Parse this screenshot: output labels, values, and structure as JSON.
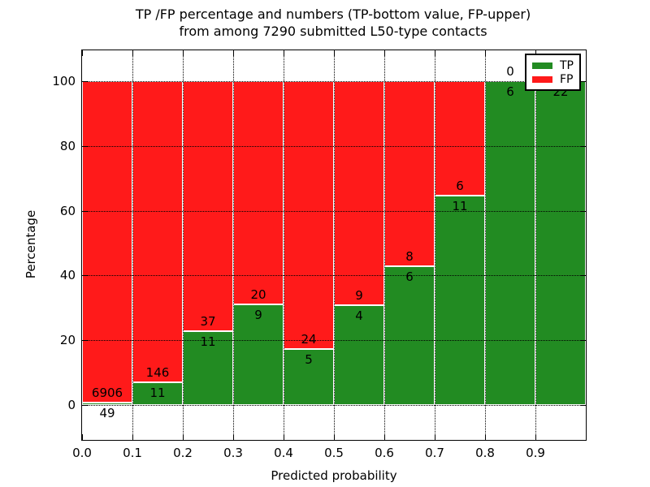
{
  "title": {
    "line1": "TP /FP percentage and numbers (TP-bottom value, FP-upper)",
    "line2": "from among 7290 submitted L50-type contacts"
  },
  "colors": {
    "tp": "#228b22",
    "fp": "#ff1a1a",
    "frame": "#000000",
    "background": "#ffffff"
  },
  "chart_data": {
    "type": "bar",
    "stacked": true,
    "normalized_to_percent": true,
    "title": "TP /FP percentage and numbers (TP-bottom value, FP-upper) from among 7290 submitted L50-type contacts",
    "xlabel": "Predicted probability",
    "ylabel": "Percentage",
    "x_tick_labels": [
      "0.0",
      "0.1",
      "0.2",
      "0.3",
      "0.4",
      "0.5",
      "0.6",
      "0.7",
      "0.8",
      "0.9"
    ],
    "y_ticks": [
      0,
      20,
      40,
      60,
      80,
      100
    ],
    "xlim": [
      0.0,
      1.0
    ],
    "ylim": [
      -10.8,
      109.5
    ],
    "grid": "dotted",
    "gridlines_above_bars": true,
    "bar_bin_width": 0.1,
    "series": [
      {
        "name": "TP",
        "color": "#228b22",
        "counts": [
          49,
          11,
          11,
          9,
          5,
          4,
          6,
          11,
          6,
          22
        ]
      },
      {
        "name": "FP",
        "color": "#ff1a1a",
        "counts": [
          6906,
          146,
          37,
          20,
          24,
          9,
          8,
          6,
          0,
          0
        ]
      }
    ],
    "bins": [
      {
        "range": [
          0.0,
          0.1
        ],
        "tp": 49,
        "fp": 6906
      },
      {
        "range": [
          0.1,
          0.2
        ],
        "tp": 11,
        "fp": 146
      },
      {
        "range": [
          0.2,
          0.3
        ],
        "tp": 11,
        "fp": 37
      },
      {
        "range": [
          0.3,
          0.4
        ],
        "tp": 9,
        "fp": 20
      },
      {
        "range": [
          0.4,
          0.5
        ],
        "tp": 5,
        "fp": 24
      },
      {
        "range": [
          0.5,
          0.6
        ],
        "tp": 4,
        "fp": 9
      },
      {
        "range": [
          0.6,
          0.7
        ],
        "tp": 6,
        "fp": 8
      },
      {
        "range": [
          0.7,
          0.8
        ],
        "tp": 11,
        "fp": 6
      },
      {
        "range": [
          0.8,
          0.9
        ],
        "tp": 6,
        "fp": 0
      },
      {
        "range": [
          0.9,
          1.0
        ],
        "tp": 22,
        "fp": 0
      }
    ],
    "legend": {
      "position": "upper right",
      "entries": [
        {
          "label": "TP",
          "color": "#228b22"
        },
        {
          "label": "FP",
          "color": "#ff1a1a"
        }
      ]
    }
  }
}
